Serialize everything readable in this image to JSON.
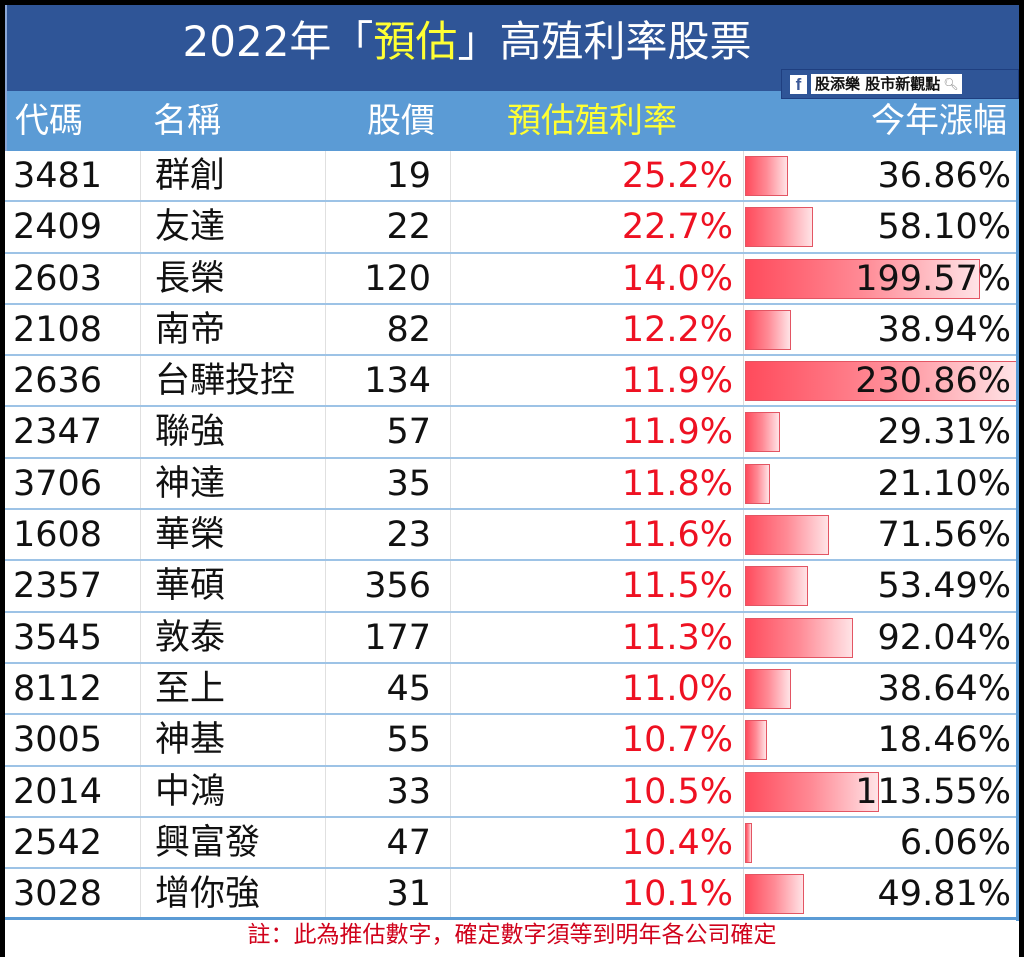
{
  "title": {
    "prefix": "2022年「",
    "highlight": "預估",
    "suffix": "」高殖利率股票"
  },
  "watermark": {
    "icon": "facebook-icon",
    "text": "股添樂 股市新觀點",
    "search_icon": "search-icon"
  },
  "columns": {
    "code": "代碼",
    "name": "名稱",
    "price": "股價",
    "yield": "預估殖利率",
    "change": "今年漲幅"
  },
  "rows": [
    {
      "code": "3481",
      "name": "群創",
      "price": "19",
      "yield": "25.2%",
      "change": "36.86%",
      "change_value": 36.86
    },
    {
      "code": "2409",
      "name": "友達",
      "price": "22",
      "yield": "22.7%",
      "change": "58.10%",
      "change_value": 58.1
    },
    {
      "code": "2603",
      "name": "長榮",
      "price": "120",
      "yield": "14.0%",
      "change": "199.57%",
      "change_value": 199.57
    },
    {
      "code": "2108",
      "name": "南帝",
      "price": "82",
      "yield": "12.2%",
      "change": "38.94%",
      "change_value": 38.94
    },
    {
      "code": "2636",
      "name": "台驊投控",
      "price": "134",
      "yield": "11.9%",
      "change": "230.86%",
      "change_value": 230.86
    },
    {
      "code": "2347",
      "name": "聯強",
      "price": "57",
      "yield": "11.9%",
      "change": "29.31%",
      "change_value": 29.31
    },
    {
      "code": "3706",
      "name": "神達",
      "price": "35",
      "yield": "11.8%",
      "change": "21.10%",
      "change_value": 21.1
    },
    {
      "code": "1608",
      "name": "華榮",
      "price": "23",
      "yield": "11.6%",
      "change": "71.56%",
      "change_value": 71.56
    },
    {
      "code": "2357",
      "name": "華碩",
      "price": "356",
      "yield": "11.5%",
      "change": "53.49%",
      "change_value": 53.49
    },
    {
      "code": "3545",
      "name": "敦泰",
      "price": "177",
      "yield": "11.3%",
      "change": "92.04%",
      "change_value": 92.04
    },
    {
      "code": "8112",
      "name": "至上",
      "price": "45",
      "yield": "11.0%",
      "change": "38.64%",
      "change_value": 38.64
    },
    {
      "code": "3005",
      "name": "神基",
      "price": "55",
      "yield": "10.7%",
      "change": "18.46%",
      "change_value": 18.46
    },
    {
      "code": "2014",
      "name": "中鴻",
      "price": "33",
      "yield": "10.5%",
      "change": "113.55%",
      "change_value": 113.55
    },
    {
      "code": "2542",
      "name": "興富發",
      "price": "47",
      "yield": "10.4%",
      "change": "6.06%",
      "change_value": 6.06
    },
    {
      "code": "3028",
      "name": "增你強",
      "price": "31",
      "yield": "10.1%",
      "change": "49.81%",
      "change_value": 49.81
    }
  ],
  "bar_max": 230.86,
  "note": "註：此為推估數字，確定數字須等到明年各公司確定",
  "colors": {
    "title_bg": "#2f5597",
    "header_bg": "#5b9bd5",
    "highlight": "#ffff33",
    "yield_text": "#ee1122",
    "bar": "#ff4b5c",
    "note": "#d0021b"
  }
}
